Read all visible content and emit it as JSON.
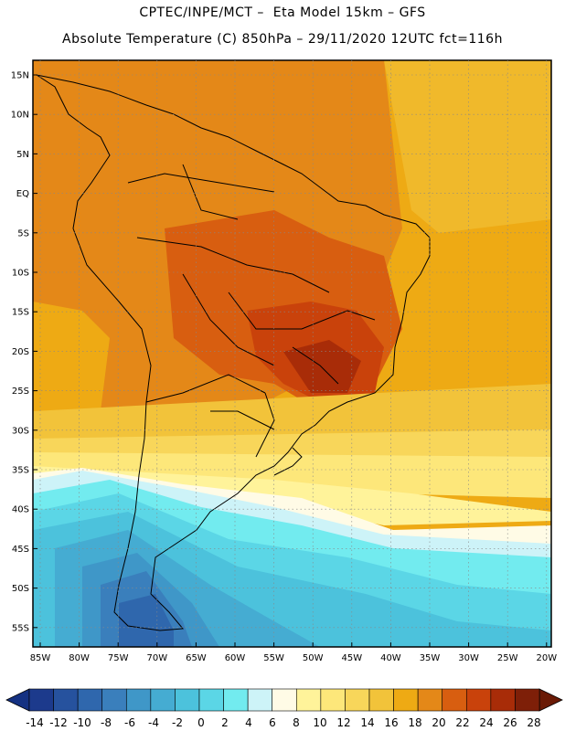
{
  "header": {
    "line1": "CPTEC/INPE/MCT –  Eta Model 15km – GFS",
    "line2": "Absolute Temperature (C) 850hPa – 29/11/2020 12UTC fct=116h"
  },
  "map": {
    "lat_ticks": [
      "15N",
      "10N",
      "5N",
      "EQ",
      "5S",
      "10S",
      "15S",
      "20S",
      "25S",
      "30S",
      "35S",
      "40S",
      "45S",
      "50S",
      "55S"
    ],
    "lon_ticks": [
      "85W",
      "80W",
      "75W",
      "70W",
      "65W",
      "60W",
      "55W",
      "50W",
      "45W",
      "40W",
      "35W",
      "30W",
      "25W",
      "20W"
    ]
  },
  "colorbar": {
    "labels": [
      "-14",
      "-12",
      "-10",
      "-8",
      "-6",
      "-4",
      "-2",
      "0",
      "2",
      "4",
      "6",
      "8",
      "10",
      "12",
      "14",
      "16",
      "18",
      "20",
      "22",
      "24",
      "26",
      "28"
    ],
    "colors": [
      "#1c3a8c",
      "#26529e",
      "#2f67ad",
      "#3a7fbc",
      "#3f97c8",
      "#45acd2",
      "#4cc2dc",
      "#5bd6e6",
      "#72ebef",
      "#cdf3f8",
      "#fffbe6",
      "#fff39a",
      "#fde77a",
      "#f8d65a",
      "#f2c33a",
      "#eeaa14",
      "#e48818",
      "#d85e10",
      "#c9420b",
      "#a82c08",
      "#7e1f08"
    ],
    "low_arrow": "#143182",
    "high_arrow": "#6a1a05"
  }
}
